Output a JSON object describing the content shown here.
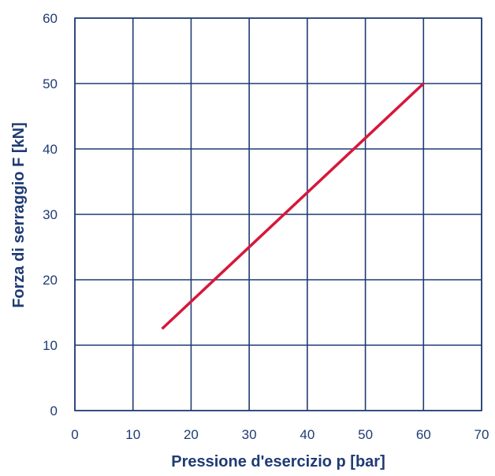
{
  "chart_data": {
    "type": "line",
    "xlabel": "Pressione d'esercizio p [bar]",
    "ylabel": "Forza di serraggio F [kN]",
    "xlim": [
      0,
      70
    ],
    "ylim": [
      0,
      60
    ],
    "xticks": [
      0,
      10,
      20,
      30,
      40,
      50,
      60,
      70
    ],
    "yticks": [
      0,
      10,
      20,
      30,
      40,
      50,
      60
    ],
    "grid": true,
    "series": [
      {
        "x": [
          15,
          60
        ],
        "y": [
          12.5,
          50
        ],
        "color": "#d6183a"
      }
    ],
    "colors": {
      "grid": "#1f3b73",
      "text": "#1f3b73",
      "line": "#d6183a"
    }
  }
}
